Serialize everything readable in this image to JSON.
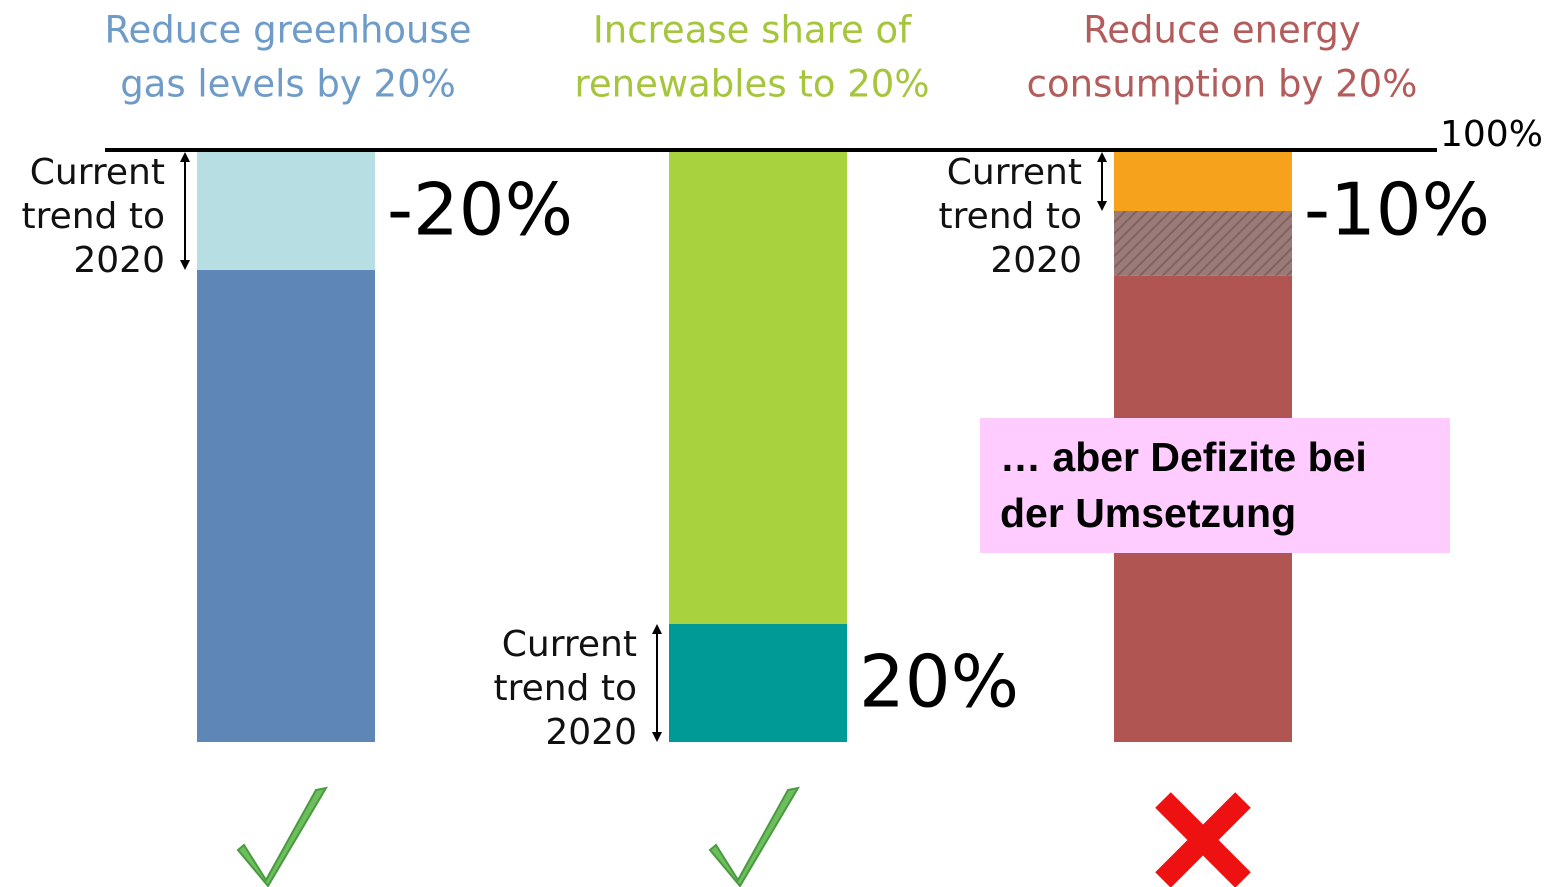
{
  "chart_data": {
    "type": "stacked-bar",
    "ylim": [
      0,
      100
    ],
    "yticks": [
      {
        "value": 100,
        "label": "100%"
      }
    ],
    "bars": [
      {
        "title": [
          "Reduce greenhouse",
          "gas levels by 20%"
        ],
        "title_color": "#6f9bc8",
        "status": "check",
        "segments": [
          {
            "value": 80,
            "color": "#5e87b8"
          },
          {
            "value": 20,
            "color": "#b7dfe3",
            "trend_label": [
              "Current",
              "trend to",
              "2020"
            ],
            "annotation": "-20%"
          }
        ]
      },
      {
        "title": [
          "Increase share of",
          "renewables to 20%"
        ],
        "title_color": "#a5c63c",
        "status": "check",
        "segments": [
          {
            "value": 20,
            "color": "#009a96",
            "trend_label": [
              "Current",
              "trend to",
              "2020"
            ],
            "annotation": "20%"
          },
          {
            "value": 80,
            "color": "#a8d23e"
          }
        ]
      },
      {
        "title": [
          "Reduce energy",
          "consumption by 20%"
        ],
        "title_color": "#b35c5c",
        "status": "cross",
        "segments": [
          {
            "value": 79,
            "color": "#b15553"
          },
          {
            "value": 11,
            "color": "#9c7a78",
            "pattern": "hatch"
          },
          {
            "value": 10,
            "color": "#f7a21c",
            "trend_label": [
              "Current",
              "trend to",
              "2020"
            ],
            "annotation": "-10%"
          }
        ]
      }
    ],
    "callout": [
      "… aber Defizite bei",
      "der Umsetzung"
    ]
  }
}
